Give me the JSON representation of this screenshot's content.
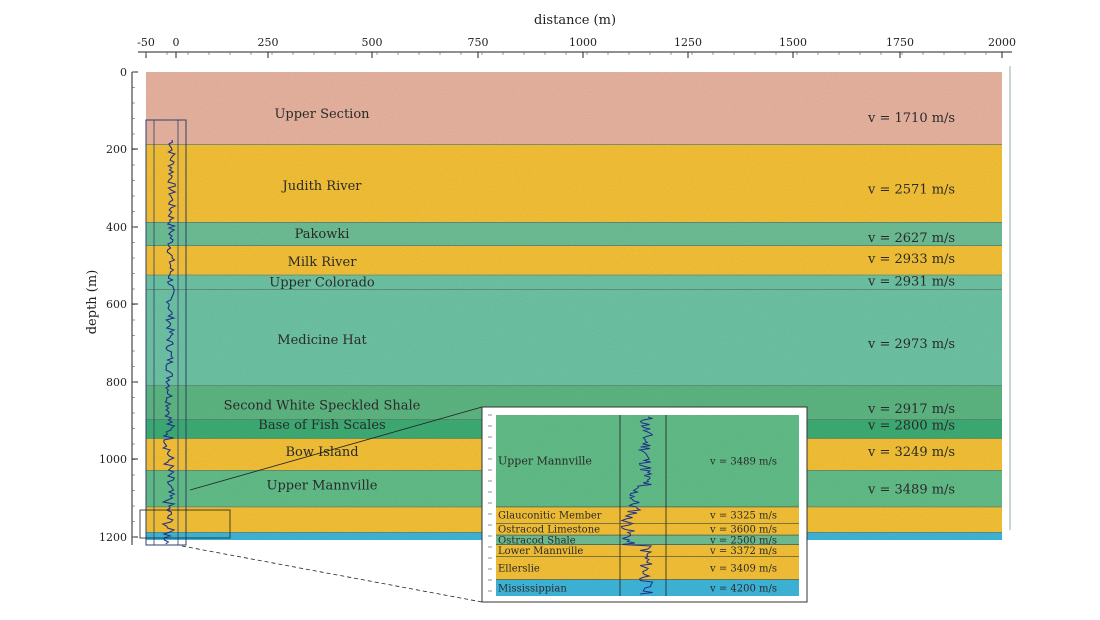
{
  "figure": {
    "x_axis": {
      "title": "distance (m)",
      "ticks": [
        "-50",
        "0",
        "250",
        "500",
        "750",
        "1000",
        "1250",
        "1500",
        "1750",
        "2000"
      ]
    },
    "y_axis": {
      "title": "depth (m)",
      "ticks": [
        "0",
        "200",
        "400",
        "600",
        "800",
        "1000",
        "1200"
      ]
    },
    "layers": [
      {
        "name": "Upper Section",
        "velocity": "v = 1710 m/s",
        "top": 0,
        "bottom": 193,
        "color": "#e9b5a0",
        "label_depth": 112,
        "vel_depth": 122
      },
      {
        "name": "Judith River",
        "velocity": "v = 2571 m/s",
        "top": 193,
        "bottom": 400,
        "color": "#f6c237",
        "label_depth": 303,
        "vel_depth": 313
      },
      {
        "name": "Pakowki",
        "velocity": "v = 2627 m/s",
        "top": 400,
        "bottom": 462,
        "color": "#6fc096",
        "label_depth": 431,
        "vel_depth": 441
      },
      {
        "name": "Milk River",
        "velocity": "v = 2933 m/s",
        "top": 462,
        "bottom": 540,
        "color": "#f6c237",
        "label_depth": 506,
        "vel_depth": 498
      },
      {
        "name": "Upper Colorado",
        "velocity": "v = 2931 m/s",
        "top": 540,
        "bottom": 578,
        "color": "#6fc5a6",
        "label_depth": 560,
        "vel_depth": 557
      },
      {
        "name": "Medicine Hat",
        "velocity": "v = 2973 m/s",
        "top": 578,
        "bottom": 834,
        "color": "#6fc5a6",
        "label_depth": 713,
        "vel_depth": 723
      },
      {
        "name": "Second White Speckled Shale",
        "velocity": "v = 2917 m/s",
        "top": 834,
        "bottom": 925,
        "color": "#5fb883",
        "label_depth": 887,
        "vel_depth": 897
      },
      {
        "name": "Base of Fish Scales",
        "velocity": "v = 2800 m/s",
        "top": 925,
        "bottom": 975,
        "color": "#3fae76",
        "label_depth": 939,
        "vel_depth": 941
      },
      {
        "name": "Bow Island",
        "velocity": "v = 3249 m/s",
        "top": 975,
        "bottom": 1060,
        "color": "#f6c237",
        "label_depth": 1011,
        "vel_depth": 1011
      },
      {
        "name": "Upper Mannville",
        "velocity": "v = 3489 m/s",
        "top": 1060,
        "bottom": 1157,
        "color": "#63bf8a",
        "label_depth": 1100,
        "vel_depth": 1111
      },
      {
        "name": "",
        "velocity": "",
        "top": 1157,
        "bottom": 1225,
        "color": "#f6c237"
      },
      {
        "name": "",
        "velocity": "",
        "top": 1225,
        "bottom": 1245,
        "color": "#3fb8dc"
      }
    ],
    "inset": {
      "layers": [
        {
          "name": "Upper Mannville",
          "velocity": "v = 3489 m/s",
          "color": "#63bf8a",
          "weight": 95
        },
        {
          "name": "Glauconitic Member",
          "velocity": "v = 3325 m/s",
          "color": "#f6c237",
          "weight": 17
        },
        {
          "name": "Ostracod Limestone",
          "velocity": "v = 3600 m/s",
          "color": "#f6c237",
          "weight": 12
        },
        {
          "name": "Ostracod Shale",
          "velocity": "v = 2500 m/s",
          "color": "#6fc096",
          "weight": 10
        },
        {
          "name": "Lower Mannville",
          "velocity": "v = 3372 m/s",
          "color": "#f6c237",
          "weight": 12
        },
        {
          "name": "Ellerslie",
          "velocity": "v = 3409 m/s",
          "color": "#f6c237",
          "weight": 24
        },
        {
          "name": "Mississippian",
          "velocity": "v = 4200 m/s",
          "color": "#3fb8dc",
          "weight": 17
        }
      ]
    }
  }
}
